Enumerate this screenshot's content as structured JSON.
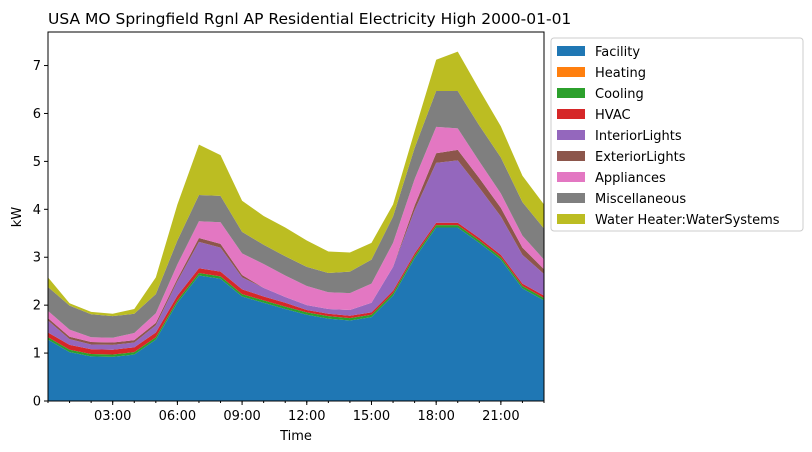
{
  "chart_data": {
    "type": "area",
    "title": "USA MO Springfield Rgnl AP Residential Electricity High 2000-01-01",
    "xlabel": "Time",
    "ylabel": "kW",
    "xlim": [
      "00:00",
      "23:00"
    ],
    "ylim": [
      0,
      7.7
    ],
    "x_ticks": [
      "03:00",
      "06:00",
      "09:00",
      "12:00",
      "15:00",
      "18:00",
      "21:00"
    ],
    "y_ticks": [
      "0",
      "1",
      "2",
      "3",
      "4",
      "5",
      "6",
      "7"
    ],
    "x": [
      "00:00",
      "01:00",
      "02:00",
      "03:00",
      "04:00",
      "05:00",
      "06:00",
      "07:00",
      "08:00",
      "09:00",
      "10:00",
      "11:00",
      "12:00",
      "13:00",
      "14:00",
      "15:00",
      "16:00",
      "17:00",
      "18:00",
      "19:00",
      "20:00",
      "21:00",
      "22:00",
      "23:00"
    ],
    "stacked": true,
    "grid": false,
    "legend_position": "outside-right",
    "series": [
      {
        "name": "Facility",
        "color": "#1f77b4",
        "values": [
          1.28,
          1.02,
          0.93,
          0.92,
          0.97,
          1.28,
          2.05,
          2.62,
          2.55,
          2.18,
          2.05,
          1.92,
          1.8,
          1.72,
          1.68,
          1.75,
          2.2,
          2.98,
          3.62,
          3.62,
          3.3,
          2.95,
          2.35,
          2.1
        ]
      },
      {
        "name": "Heating",
        "color": "#ff7f0e",
        "values": [
          0,
          0,
          0,
          0,
          0,
          0,
          0,
          0,
          0,
          0,
          0,
          0,
          0,
          0,
          0,
          0,
          0,
          0,
          0,
          0,
          0,
          0,
          0,
          0
        ]
      },
      {
        "name": "Cooling",
        "color": "#2ca02c",
        "values": [
          0.05,
          0.05,
          0.05,
          0.05,
          0.05,
          0.05,
          0.05,
          0.05,
          0.05,
          0.05,
          0.05,
          0.05,
          0.05,
          0.05,
          0.05,
          0.05,
          0.05,
          0.05,
          0.05,
          0.05,
          0.05,
          0.05,
          0.05,
          0.05
        ]
      },
      {
        "name": "HVAC",
        "color": "#d62728",
        "values": [
          0.1,
          0.1,
          0.1,
          0.1,
          0.1,
          0.1,
          0.1,
          0.1,
          0.1,
          0.1,
          0.08,
          0.08,
          0.05,
          0.05,
          0.05,
          0.05,
          0.05,
          0.05,
          0.05,
          0.05,
          0.05,
          0.05,
          0.05,
          0.05
        ]
      },
      {
        "name": "InteriorLights",
        "color": "#9467bd",
        "values": [
          0.25,
          0.12,
          0.1,
          0.1,
          0.1,
          0.15,
          0.3,
          0.55,
          0.5,
          0.25,
          0.18,
          0.12,
          0.1,
          0.1,
          0.12,
          0.2,
          0.5,
          0.9,
          1.25,
          1.3,
          1.05,
          0.8,
          0.6,
          0.45
        ]
      },
      {
        "name": "ExteriorLights",
        "color": "#8c564b",
        "values": [
          0.05,
          0.05,
          0.05,
          0.05,
          0.05,
          0.05,
          0.05,
          0.08,
          0.08,
          0.05,
          0,
          0,
          0,
          0,
          0,
          0,
          0,
          0.1,
          0.2,
          0.22,
          0.2,
          0.18,
          0.15,
          0.1
        ]
      },
      {
        "name": "Appliances",
        "color": "#e377c2",
        "values": [
          0.15,
          0.15,
          0.1,
          0.1,
          0.15,
          0.2,
          0.3,
          0.35,
          0.45,
          0.45,
          0.5,
          0.45,
          0.4,
          0.35,
          0.35,
          0.4,
          0.5,
          0.55,
          0.55,
          0.45,
          0.35,
          0.3,
          0.25,
          0.2
        ]
      },
      {
        "name": "Miscellaneous",
        "color": "#7f7f7f",
        "values": [
          0.5,
          0.5,
          0.48,
          0.45,
          0.4,
          0.4,
          0.5,
          0.55,
          0.55,
          0.45,
          0.4,
          0.4,
          0.4,
          0.4,
          0.45,
          0.5,
          0.55,
          0.65,
          0.75,
          0.78,
          0.75,
          0.75,
          0.7,
          0.65
        ]
      },
      {
        "name": "Water Heater:WaterSystems",
        "color": "#bcbd22",
        "values": [
          0.2,
          0.05,
          0.05,
          0.05,
          0.1,
          0.35,
          0.75,
          1.05,
          0.85,
          0.65,
          0.6,
          0.6,
          0.55,
          0.45,
          0.4,
          0.35,
          0.25,
          0.35,
          0.65,
          0.82,
          0.75,
          0.65,
          0.55,
          0.5
        ]
      }
    ]
  }
}
